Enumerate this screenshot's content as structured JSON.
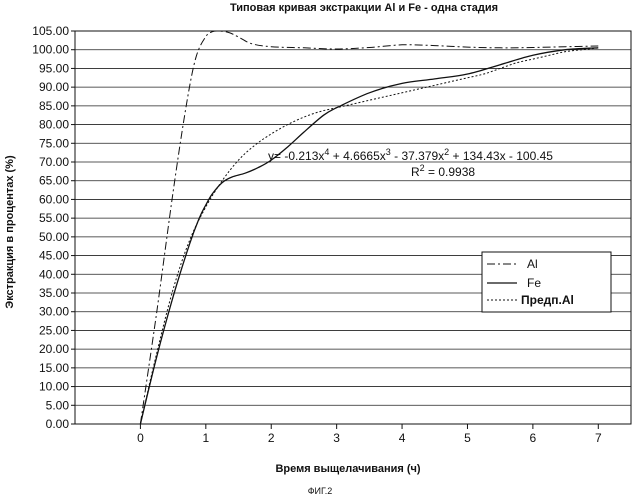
{
  "chart_data": {
    "type": "line",
    "title": "Типовая кривая экстракции Al и Fe - одна стадия",
    "xlabel": "Время выщелачивания (ч)",
    "ylabel": "Экстракция в процентах (%)",
    "xlim": [
      -1,
      7.5
    ],
    "ylim": [
      0,
      105
    ],
    "xticks": [
      0,
      1,
      2,
      3,
      4,
      5,
      6,
      7
    ],
    "yticks": [
      "0.00",
      "5.00",
      "10.00",
      "15.00",
      "20.00",
      "25.00",
      "30.00",
      "35.00",
      "40.00",
      "45.00",
      "50.00",
      "55.00",
      "60.00",
      "65.00",
      "70.00",
      "75.00",
      "80.00",
      "85.00",
      "90.00",
      "95.00",
      "100.00",
      "105.00"
    ],
    "grid": "horizontal",
    "legend_position": "right",
    "series": [
      {
        "name": "Al",
        "style": "dashdot",
        "x": [
          0,
          0.25,
          0.5,
          0.7,
          0.85,
          1.0,
          1.1,
          1.2,
          1.35,
          1.5,
          1.7,
          2.0,
          2.5,
          3.0,
          3.5,
          4.0,
          4.5,
          5.0,
          5.5,
          6.0,
          6.5,
          7.0
        ],
        "y": [
          0,
          30,
          62,
          85,
          98,
          103.5,
          104.8,
          105,
          104.6,
          103.4,
          101.6,
          100.8,
          100.5,
          100.2,
          100.6,
          101.3,
          101.1,
          100.7,
          100.5,
          100.6,
          100.8,
          101
        ]
      },
      {
        "name": "Fe",
        "style": "solid",
        "x": [
          0,
          0.25,
          0.5,
          0.75,
          0.9,
          1.0,
          1.1,
          1.25,
          1.4,
          1.6,
          1.8,
          2.0,
          2.25,
          2.5,
          2.8,
          3.0,
          3.5,
          4.0,
          4.5,
          5.0,
          5.5,
          6.0,
          6.5,
          7.0
        ],
        "y": [
          0,
          18,
          34,
          48,
          55,
          58.5,
          61.5,
          64.5,
          66,
          67,
          68.5,
          70.5,
          74,
          78,
          82.5,
          84.5,
          88.5,
          91,
          92.2,
          93.5,
          96,
          98.5,
          100,
          100.5
        ]
      },
      {
        "name": "Предп.Al",
        "style": "dotted",
        "x": [
          0,
          0.25,
          0.5,
          0.75,
          1.0,
          1.25,
          1.5,
          1.75,
          2.0,
          2.25,
          2.5,
          2.75,
          3.0,
          3.25,
          3.5,
          3.75,
          4.0,
          4.25,
          4.5,
          4.75,
          5.0,
          5.25,
          5.5,
          5.75,
          6.0,
          6.25,
          6.5,
          6.75,
          7.0
        ],
        "y": [
          0,
          19,
          36,
          49,
          58,
          65,
          70.5,
          74.5,
          77.5,
          80,
          82,
          83.5,
          84.5,
          85.5,
          86.5,
          87.5,
          88.5,
          89.5,
          90.5,
          91.5,
          92.5,
          93.5,
          95,
          96.5,
          97.5,
          98.5,
          99.5,
          100,
          100.5
        ]
      }
    ],
    "annotations": {
      "equation_prefix": "y= -0.213x",
      "equation_exp1": "4",
      "equation_part2": " + 4.6665x",
      "equation_exp2": "3",
      "equation_part3": " - 37.379x",
      "equation_exp3": "2",
      "equation_part4": " + 134.43x - 100.45",
      "r2_prefix": "R",
      "r2_exp": "2",
      "r2_value": " = 0.9938"
    },
    "figure_label": "ФИГ.2"
  }
}
